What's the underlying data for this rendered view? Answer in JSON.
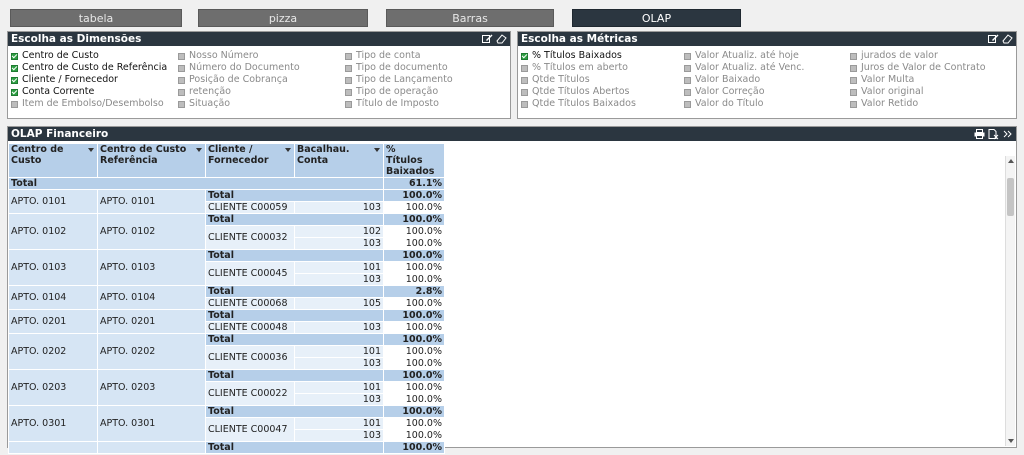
{
  "tabs": [
    {
      "label": "tabela",
      "active": false
    },
    {
      "label": "pizza",
      "active": false
    },
    {
      "label": "Barras",
      "active": false
    },
    {
      "label": "OLAP",
      "active": true
    }
  ],
  "dimensions_panel": {
    "title": "Escolha as Dimensões",
    "columns": [
      [
        {
          "label": "Centro de Custo",
          "checked": true
        },
        {
          "label": "Centro de Custo de Referência",
          "checked": true
        },
        {
          "label": "Cliente / Fornecedor",
          "checked": true
        },
        {
          "label": "Conta Corrente",
          "checked": true
        },
        {
          "label": "Item de Embolso/Desembolso",
          "checked": false
        }
      ],
      [
        {
          "label": "Nosso Número",
          "checked": false
        },
        {
          "label": "Número do Documento",
          "checked": false
        },
        {
          "label": "Posição de Cobrança",
          "checked": false
        },
        {
          "label": "retenção",
          "checked": false
        },
        {
          "label": "Situação",
          "checked": false
        }
      ],
      [
        {
          "label": "Tipo de conta",
          "checked": false
        },
        {
          "label": "Tipo de documento",
          "checked": false
        },
        {
          "label": "Tipo de Lançamento",
          "checked": false
        },
        {
          "label": "Tipo de operação",
          "checked": false
        },
        {
          "label": "Título de Imposto",
          "checked": false
        }
      ]
    ]
  },
  "metrics_panel": {
    "title": "Escolha as Métricas",
    "columns": [
      [
        {
          "label": "% Títulos Baixados",
          "checked": true
        },
        {
          "label": "% Títulos em aberto",
          "checked": false
        },
        {
          "label": "Qtde Títulos",
          "checked": false
        },
        {
          "label": "Qtde Títulos Abertos",
          "checked": false
        },
        {
          "label": "Qtde Títulos Baixados",
          "checked": false
        }
      ],
      [
        {
          "label": "Valor Atualiz. até hoje",
          "checked": false
        },
        {
          "label": "Valor Atualiz. até Venc.",
          "checked": false
        },
        {
          "label": "Valor Baixado",
          "checked": false
        },
        {
          "label": "Valor Correção",
          "checked": false
        },
        {
          "label": "Valor do Título",
          "checked": false
        }
      ],
      [
        {
          "label": "jurados de valor",
          "checked": false
        },
        {
          "label": "Juros de Valor de Contrato",
          "checked": false
        },
        {
          "label": "Valor Multa",
          "checked": false
        },
        {
          "label": "Valor original",
          "checked": false
        },
        {
          "label": "Valor Retido",
          "checked": false
        }
      ]
    ]
  },
  "olap": {
    "title": "OLAP Financeiro",
    "headers": [
      "Centro de Custo",
      "Centro de Custo Referência",
      "Cliente / Fornecedor",
      "Bacalhau. Conta",
      "% Títulos Baixados"
    ],
    "grand_total": {
      "label": "Total",
      "value": "61.1%"
    },
    "total_label": "Total",
    "groups": [
      {
        "cc": "APTO. 0101",
        "ccr": "APTO. 0101",
        "total": "100.0%",
        "client": "CLIENTE C00059",
        "rows": [
          {
            "conta": "103",
            "value": "100.0%"
          }
        ]
      },
      {
        "cc": "APTO. 0102",
        "ccr": "APTO. 0102",
        "total": "100.0%",
        "client": "CLIENTE C00032",
        "rows": [
          {
            "conta": "102",
            "value": "100.0%"
          },
          {
            "conta": "103",
            "value": "100.0%"
          }
        ]
      },
      {
        "cc": "APTO. 0103",
        "ccr": "APTO. 0103",
        "total": "100.0%",
        "client": "CLIENTE C00045",
        "rows": [
          {
            "conta": "101",
            "value": "100.0%"
          },
          {
            "conta": "103",
            "value": "100.0%"
          }
        ]
      },
      {
        "cc": "APTO. 0104",
        "ccr": "APTO. 0104",
        "total": "2.8%",
        "client": "CLIENTE C00068",
        "rows": [
          {
            "conta": "105",
            "value": "100.0%"
          }
        ]
      },
      {
        "cc": "APTO. 0201",
        "ccr": "APTO. 0201",
        "total": "100.0%",
        "client": "CLIENTE C00048",
        "rows": [
          {
            "conta": "103",
            "value": "100.0%"
          }
        ]
      },
      {
        "cc": "APTO. 0202",
        "ccr": "APTO. 0202",
        "total": "100.0%",
        "client": "CLIENTE C00036",
        "rows": [
          {
            "conta": "101",
            "value": "100.0%"
          },
          {
            "conta": "103",
            "value": "100.0%"
          }
        ]
      },
      {
        "cc": "APTO. 0203",
        "ccr": "APTO. 0203",
        "total": "100.0%",
        "client": "CLIENTE C00022",
        "rows": [
          {
            "conta": "101",
            "value": "100.0%"
          },
          {
            "conta": "103",
            "value": "100.0%"
          }
        ]
      },
      {
        "cc": "APTO. 0301",
        "ccr": "APTO. 0301",
        "total": "100.0%",
        "client": "CLIENTE C00047",
        "rows": [
          {
            "conta": "101",
            "value": "100.0%"
          },
          {
            "conta": "103",
            "value": "100.0%"
          }
        ]
      },
      {
        "cc": "",
        "ccr": "",
        "total": "100.0%",
        "client": "",
        "rows": []
      }
    ]
  },
  "colors": {
    "header_dark": "#2b3640",
    "checked_green": "#2ea043",
    "pivot_blue": "#b6cfe9"
  },
  "icons": [
    "edit-icon",
    "eraser-icon",
    "print-icon",
    "clear-selection-icon",
    "collapse-icon"
  ]
}
